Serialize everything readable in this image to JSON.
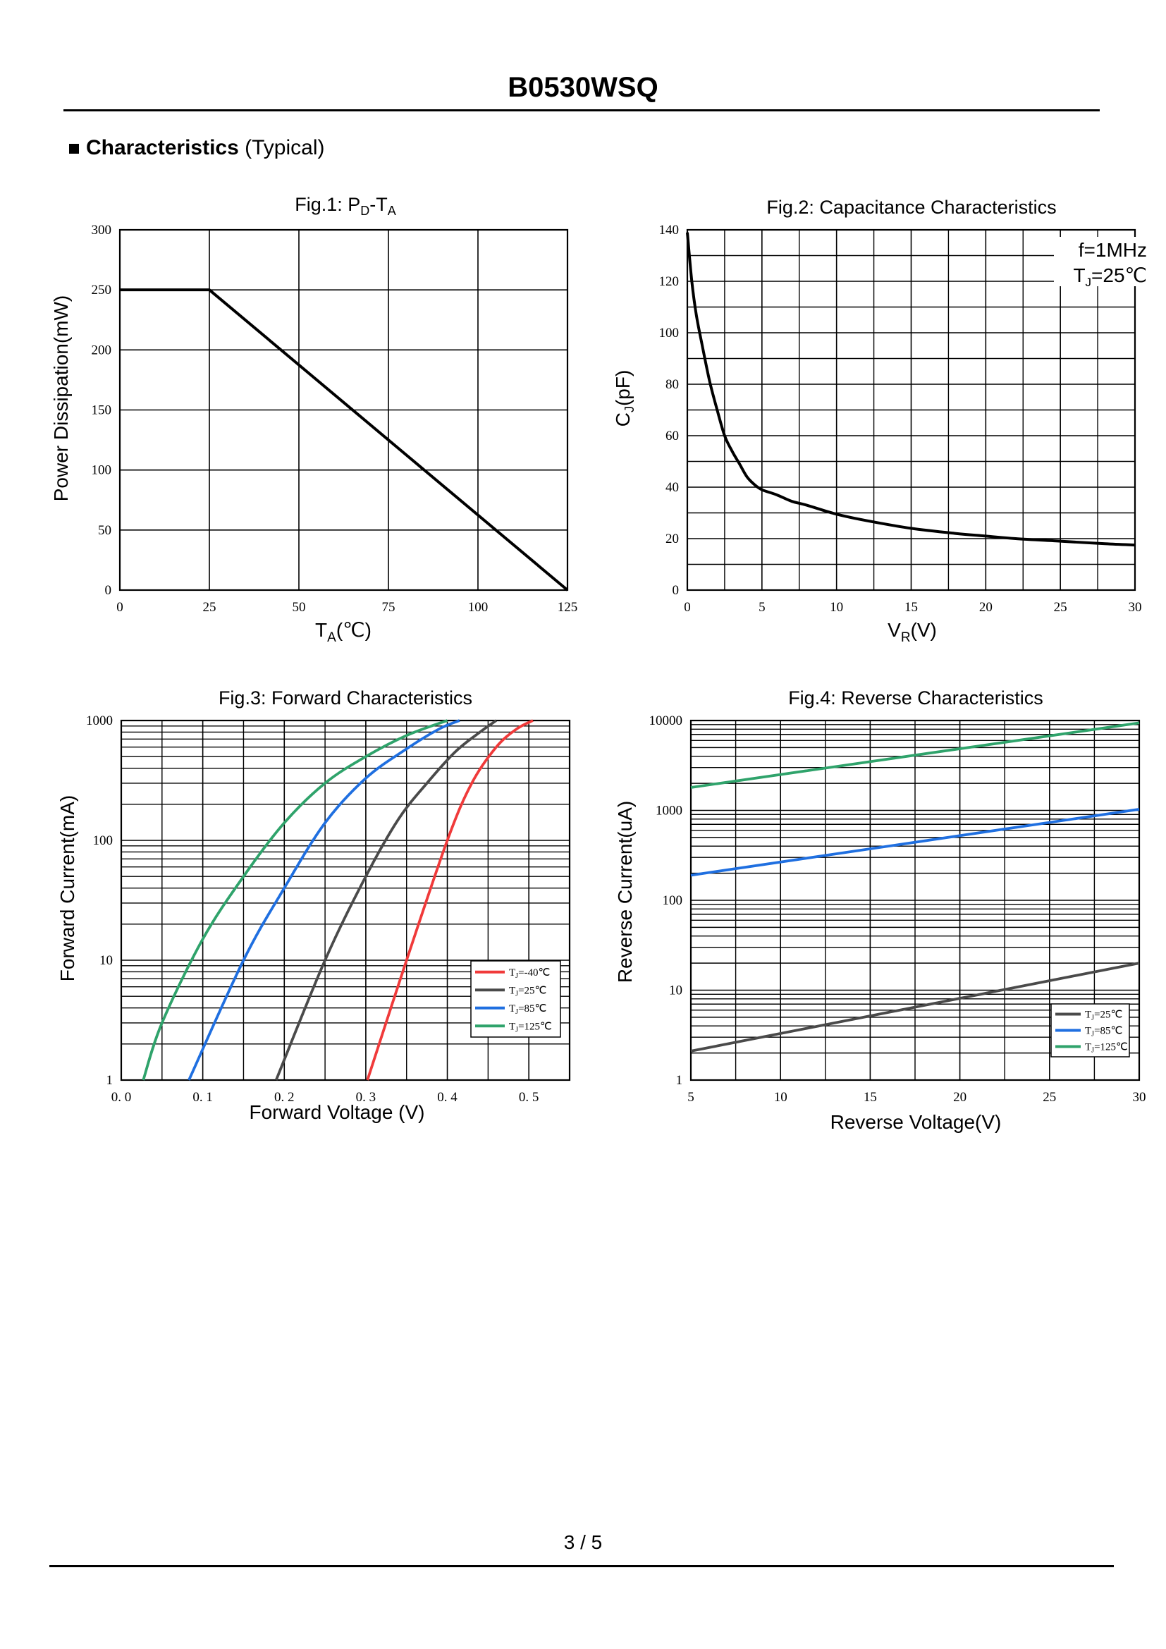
{
  "document": {
    "title": "B0530WSQ",
    "section_title": "Characteristics",
    "section_subtitle": "(Typical)",
    "page_number": "3 / 5"
  },
  "chart_data": [
    {
      "type": "line",
      "title": "Fig.1: P",
      "title_sub1": "D",
      "title_mid": "-T",
      "title_sub2": "A",
      "xlabel": "T",
      "xlabel_sub": "A",
      "xlabel_unit": "(℃)",
      "ylabel": "Power Dissipation(mW)",
      "xlim": [
        0,
        125
      ],
      "ylim": [
        0,
        300
      ],
      "xticks": [
        0,
        25,
        50,
        75,
        100,
        125
      ],
      "yticks": [
        0,
        50,
        100,
        150,
        200,
        250,
        300
      ],
      "series": [
        {
          "name": "P_D",
          "color": "#000000",
          "x": [
            0,
            25,
            125
          ],
          "y": [
            250,
            250,
            0
          ]
        }
      ]
    },
    {
      "type": "line",
      "title": "Fig.2: Capacitance Characteristics",
      "xlabel": "V",
      "xlabel_sub": "R",
      "xlabel_unit": "(V)",
      "ylabel": "C",
      "ylabel_sub": "J",
      "ylabel_unit": "(pF)",
      "xlim": [
        0,
        30
      ],
      "ylim": [
        0,
        140
      ],
      "xticks": [
        0,
        5,
        10,
        15,
        20,
        25,
        30
      ],
      "yticks": [
        0,
        20,
        40,
        60,
        80,
        100,
        120,
        140
      ],
      "annotation_line1": "f=1MHz",
      "annotation_line2": "T",
      "annotation_line2_sub": "J",
      "annotation_line2_rest": "=25℃",
      "series": [
        {
          "name": "C_J",
          "color": "#000000",
          "x": [
            0,
            0.3,
            0.6,
            1,
            1.5,
            2,
            2.5,
            3,
            3.5,
            4,
            4.5,
            5,
            6,
            7,
            8,
            10,
            12,
            15,
            18,
            20,
            22,
            25,
            28,
            30
          ],
          "y": [
            139,
            120,
            107,
            95,
            81,
            70,
            60,
            54,
            49,
            44,
            41,
            39,
            37,
            34.5,
            33,
            29.5,
            27,
            24,
            22,
            21,
            20,
            19,
            18,
            17.5
          ]
        }
      ]
    },
    {
      "type": "line",
      "title": "Fig.3: Forward Characteristics",
      "xlabel": "Forward Voltage (V)",
      "ylabel": "Forward Current(mA)",
      "xscale": "linear",
      "yscale": "log",
      "xlim": [
        0,
        0.55
      ],
      "ylim": [
        1,
        1000
      ],
      "xticks": [
        0,
        0.1,
        0.2,
        0.3,
        0.4,
        0.5
      ],
      "xtick_labels": [
        "0. 0",
        "0. 1",
        "0. 2",
        "0. 3",
        "0. 4",
        "0. 5"
      ],
      "yticks": [
        1,
        10,
        100,
        1000
      ],
      "ytick_labels": [
        "1",
        "10",
        "100",
        "1000"
      ],
      "legend_position": "lower-right",
      "series": [
        {
          "name": "T",
          "name_sub": "J",
          "name_rest": "=-40℃",
          "color": "#f03a3a",
          "x": [
            0.302,
            0.35,
            0.4,
            0.43,
            0.46,
            0.485,
            0.505
          ],
          "y": [
            1,
            10,
            100,
            300,
            600,
            850,
            1000
          ]
        },
        {
          "name": "T",
          "name_sub": "J",
          "name_rest": "=25℃",
          "color": "#4a4a4a",
          "x": [
            0.19,
            0.25,
            0.3,
            0.34,
            0.375,
            0.41,
            0.44,
            0.46
          ],
          "y": [
            1,
            10,
            50,
            150,
            300,
            550,
            800,
            1000
          ]
        },
        {
          "name": "T",
          "name_sub": "J",
          "name_rest": "=85℃",
          "color": "#1f6fe0",
          "x": [
            0.083,
            0.15,
            0.2,
            0.25,
            0.3,
            0.35,
            0.39,
            0.415
          ],
          "y": [
            1,
            10,
            40,
            140,
            330,
            580,
            850,
            1000
          ]
        },
        {
          "name": "T",
          "name_sub": "J",
          "name_rest": "=125℃",
          "color": "#2fa36b",
          "x": [
            0.027,
            0.05,
            0.1,
            0.15,
            0.2,
            0.25,
            0.3,
            0.35,
            0.4
          ],
          "y": [
            1,
            3,
            15,
            50,
            140,
            300,
            500,
            750,
            1000
          ]
        }
      ]
    },
    {
      "type": "line",
      "title": "Fig.4: Reverse Characteristics",
      "xlabel": "Reverse Voltage(V)",
      "ylabel": "Reverse Current(uA)",
      "xscale": "linear",
      "yscale": "log",
      "xlim": [
        5,
        30
      ],
      "ylim": [
        1,
        10000
      ],
      "xticks": [
        5,
        10,
        15,
        20,
        25,
        30
      ],
      "yticks": [
        1,
        10,
        100,
        1000,
        10000
      ],
      "ytick_labels": [
        "1",
        "10",
        "100",
        "1000",
        "10000"
      ],
      "legend_position": "lower-right",
      "series": [
        {
          "name": "T",
          "name_sub": "J",
          "name_rest": "=25℃",
          "color": "#4a4a4a",
          "x": [
            5,
            30
          ],
          "y": [
            2.1,
            20
          ]
        },
        {
          "name": "T",
          "name_sub": "J",
          "name_rest": "=85℃",
          "color": "#1f6fe0",
          "x": [
            5,
            30
          ],
          "y": [
            190,
            1030
          ]
        },
        {
          "name": "T",
          "name_sub": "J",
          "name_rest": "=125℃",
          "color": "#2fa36b",
          "x": [
            5,
            30
          ],
          "y": [
            1800,
            9400
          ]
        }
      ]
    }
  ]
}
